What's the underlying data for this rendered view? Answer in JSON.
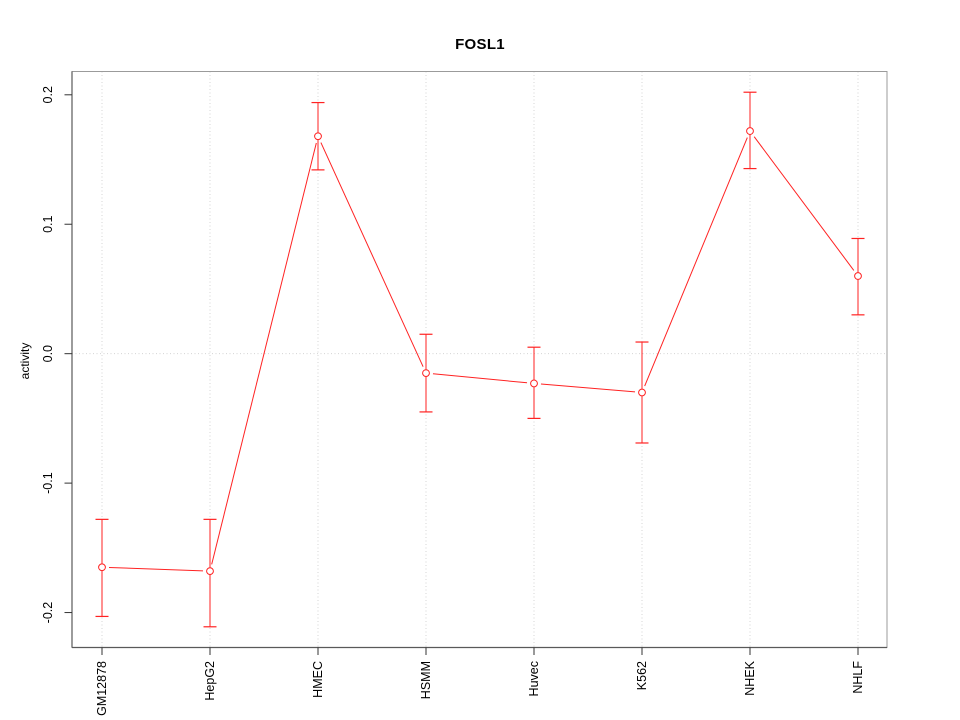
{
  "chart_data": {
    "type": "line",
    "title": "FOSL1",
    "xlabel": "",
    "ylabel": "activity",
    "categories": [
      "GM12878",
      "HepG2",
      "HMEC",
      "HSMM",
      "Huvec",
      "K562",
      "NHEK",
      "NHLF"
    ],
    "series": [
      {
        "name": "activity",
        "values": [
          -0.165,
          -0.168,
          0.168,
          -0.015,
          -0.023,
          -0.03,
          0.172,
          0.06
        ],
        "error_low": [
          -0.203,
          -0.211,
          0.142,
          -0.045,
          -0.05,
          -0.069,
          0.143,
          0.03
        ],
        "error_high": [
          -0.128,
          -0.128,
          0.194,
          0.015,
          0.005,
          0.009,
          0.202,
          0.089
        ]
      }
    ],
    "yticks": [
      -0.2,
      -0.1,
      0.0,
      0.1,
      0.2
    ],
    "ytick_labels": [
      "-0.2",
      "-0.1",
      "0.0",
      "0.1",
      "0.2"
    ],
    "ylim": [
      -0.227,
      0.218
    ],
    "grid": "dotted vertical line at each category; dotted horizontal line at y=0",
    "legend_position": "none",
    "marker": "open-circle",
    "colors": {
      "series": "#ff2222",
      "marker_fill": "#ffffff",
      "gridline": "#d4d4d4",
      "box_border": "#9b9b9b",
      "axis_line": "#595959",
      "tick_mark": "#333333",
      "text": "#000000"
    }
  }
}
